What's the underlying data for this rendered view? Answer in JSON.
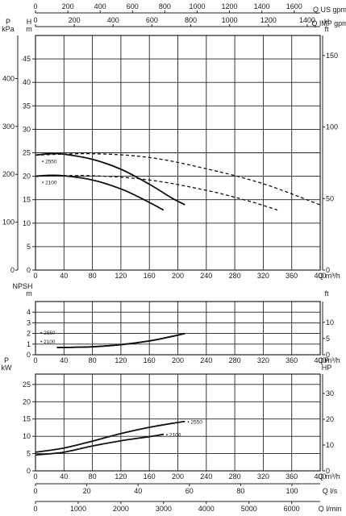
{
  "chart_data": {
    "type": "line",
    "header_axes": [
      {
        "label": "Q US gpm",
        "ticks": [
          "0",
          "200",
          "400",
          "600",
          "800",
          "1000",
          "1200",
          "1400",
          "1600"
        ],
        "values": [
          0,
          200,
          400,
          600,
          800,
          1000,
          1200,
          1400,
          1600
        ],
        "range": [
          0,
          1761
        ]
      },
      {
        "label": "Q IMP gpm",
        "ticks": [
          "0",
          "200",
          "400",
          "600",
          "800",
          "1000",
          "1200",
          "1400"
        ],
        "values": [
          0,
          200,
          400,
          600,
          800,
          1000,
          1200,
          1400
        ],
        "range": [
          0,
          1467
        ]
      }
    ],
    "footer_axes": [
      {
        "label": "Q l/s",
        "ticks": [
          "0",
          "20",
          "40",
          "60",
          "80",
          "100"
        ],
        "values": [
          0,
          20,
          40,
          60,
          80,
          100
        ],
        "range": [
          0,
          111
        ]
      },
      {
        "label": "Q l/min",
        "ticks": [
          "0",
          "1000",
          "2000",
          "3000",
          "4000",
          "5000",
          "6000"
        ],
        "values": [
          0,
          1000,
          2000,
          3000,
          4000,
          5000,
          6000
        ],
        "range": [
          0,
          6667
        ]
      }
    ],
    "panels": [
      {
        "id": "head",
        "xlabel": "Q m3/h",
        "xlim": [
          0,
          400
        ],
        "xticks": [
          "0",
          "40",
          "80",
          "120",
          "160",
          "200",
          "240",
          "280",
          "320",
          "360",
          "400"
        ],
        "ylabel_left": [
          "P",
          "kPa"
        ],
        "ylabel_inner": [
          "H",
          "m"
        ],
        "ylabel_right": [
          "H",
          "ft"
        ],
        "ylim": [
          0,
          50
        ],
        "yticks": [
          "0",
          "5",
          "10",
          "15",
          "20",
          "25",
          "30",
          "35",
          "40",
          "45"
        ],
        "outer_left_ticks": [
          "0",
          "100",
          "200",
          "300",
          "400"
        ],
        "outer_left_values": [
          0,
          100,
          200,
          300,
          400
        ],
        "outer_left_range": [
          0,
          490
        ],
        "right_ticks": [
          "0",
          "50",
          "100",
          "150"
        ],
        "right_values": [
          0,
          50,
          100,
          150
        ],
        "right_range": [
          0,
          164
        ],
        "series": [
          {
            "name": "2550",
            "style": "solid",
            "x": [
              0,
              20,
              40,
              80,
              120,
              160,
              190,
              210
            ],
            "y": [
              24.5,
              24.8,
              24.7,
              23.6,
              21.5,
              18.3,
              15.5,
              13.9
            ]
          },
          {
            "name": "2100",
            "style": "solid",
            "x": [
              0,
              20,
              40,
              80,
              120,
              150,
              180
            ],
            "y": [
              20.0,
              20.2,
              20.1,
              19.2,
              17.3,
              15.2,
              12.8
            ]
          },
          {
            "name": "",
            "style": "dashed",
            "x": [
              0,
              80,
              160,
              240,
              320,
              400
            ],
            "y": [
              24.5,
              24.8,
              24.0,
              21.6,
              18.4,
              13.9
            ]
          },
          {
            "name": "",
            "style": "dashed",
            "x": [
              0,
              80,
              160,
              240,
              300,
              340
            ],
            "y": [
              20.0,
              20.1,
              19.2,
              17.0,
              14.7,
              12.8
            ]
          }
        ]
      },
      {
        "id": "npsh",
        "xlabel": "Q m3/h",
        "xlim": [
          0,
          400
        ],
        "xticks": [
          "0",
          "40",
          "80",
          "120",
          "160",
          "200",
          "240",
          "280",
          "320",
          "360",
          "400"
        ],
        "ylabel_left": [
          "NPSH"
        ],
        "ylabel_inner": [
          "m"
        ],
        "ylabel_right": [
          "ft"
        ],
        "ylim": [
          0,
          5
        ],
        "yticks": [
          "0",
          "1",
          "2",
          "3",
          "4"
        ],
        "right_ticks": [
          "0",
          "5",
          "10"
        ],
        "right_values": [
          0,
          5,
          10
        ],
        "right_range": [
          0,
          16.4
        ],
        "series": [
          {
            "name": "2550",
            "style": "solid",
            "x": [
              30,
              80,
              120,
              160,
              190,
              210
            ],
            "y": [
              0.68,
              0.75,
              0.95,
              1.3,
              1.7,
              2.0
            ]
          },
          {
            "name": "2100",
            "style": "solid",
            "x": [
              30,
              80,
              120,
              160,
              190,
              210
            ],
            "y": [
              0.68,
              0.75,
              0.95,
              1.3,
              1.7,
              2.0
            ]
          }
        ]
      },
      {
        "id": "power",
        "xlabel": "Q m3/h",
        "xlim": [
          0,
          400
        ],
        "xticks": [
          "0",
          "40",
          "80",
          "120",
          "160",
          "200",
          "240",
          "280",
          "320",
          "360",
          "400"
        ],
        "ylabel_left": [
          "P",
          "kW"
        ],
        "ylabel_right": [
          "P",
          "HP"
        ],
        "ylim": [
          0,
          28
        ],
        "yticks": [
          "0",
          "5",
          "10",
          "15",
          "20",
          "25"
        ],
        "right_ticks": [
          "0",
          "10",
          "20",
          "30"
        ],
        "right_values": [
          0,
          10,
          20,
          30
        ],
        "right_range": [
          0,
          37.5
        ],
        "series": [
          {
            "name": "2550",
            "style": "solid",
            "x": [
              0,
              40,
              80,
              120,
              160,
              200,
              210
            ],
            "y": [
              5.4,
              6.6,
              8.6,
              10.8,
              12.6,
              14.0,
              14.3
            ]
          },
          {
            "name": "2100",
            "style": "solid",
            "x": [
              0,
              40,
              80,
              120,
              160,
              180
            ],
            "y": [
              4.6,
              5.4,
              7.2,
              8.7,
              9.9,
              10.6
            ]
          }
        ]
      }
    ]
  }
}
